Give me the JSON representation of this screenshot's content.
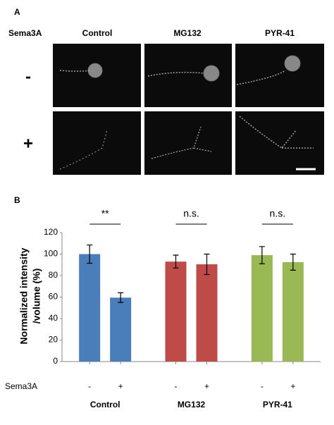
{
  "panel_a": {
    "label": "A",
    "row_label": "Sema3A",
    "columns": [
      "Control",
      "MG132",
      "PYR-41"
    ],
    "rows": [
      "-",
      "+"
    ]
  },
  "chart_data": {
    "type": "bar",
    "panel_label": "B",
    "y_label": [
      "Normalized intensity",
      "/volume (%)"
    ],
    "x_label": "Sema3A",
    "categories": [
      "-",
      "+"
    ],
    "series": [
      {
        "name": "Control",
        "color": "#4a7ebb",
        "values": [
          100,
          59.5
        ],
        "errors": [
          8.5,
          4.5
        ]
      },
      {
        "name": "MG132",
        "color": "#be4b48",
        "values": [
          93,
          90.5
        ],
        "errors": [
          6,
          9.5
        ]
      },
      {
        "name": "PYR-41",
        "color": "#98b954",
        "values": [
          99,
          92.5
        ],
        "errors": [
          8,
          7.5
        ]
      }
    ],
    "significance": [
      "**",
      "n.s.",
      "n.s."
    ],
    "ylim": [
      0,
      120
    ],
    "yticks": [
      0,
      20,
      40,
      60,
      80,
      100,
      120
    ],
    "grid": false
  }
}
